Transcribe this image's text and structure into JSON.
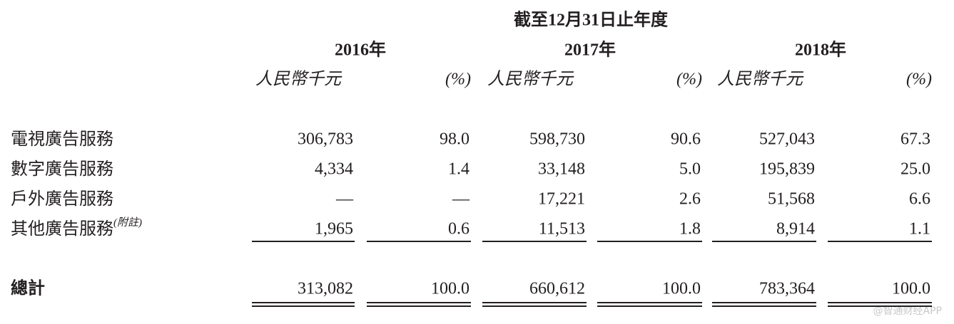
{
  "header": {
    "title": "截至12月31日止年度",
    "years": [
      "2016年",
      "2017年",
      "2018年"
    ],
    "units": [
      "人民幣千元",
      "(%)",
      "人民幣千元",
      "(%)",
      "人民幣千元",
      "(%)"
    ]
  },
  "table": {
    "rows": [
      {
        "label": "電視廣告服務",
        "cells": [
          "306,783",
          "98.0",
          "598,730",
          "90.6",
          "527,043",
          "67.3"
        ]
      },
      {
        "label": "數字廣告服務",
        "cells": [
          "4,334",
          "1.4",
          "33,148",
          "5.0",
          "195,839",
          "25.0"
        ]
      },
      {
        "label": "戶外廣告服務",
        "cells": [
          "—",
          "—",
          "17,221",
          "2.6",
          "51,568",
          "6.6"
        ]
      },
      {
        "label": "其他廣告服務",
        "note": "(附註)",
        "cells": [
          "1,965",
          "0.6",
          "11,513",
          "1.8",
          "8,914",
          "1.1"
        ]
      }
    ],
    "total": {
      "label": "總計",
      "cells": [
        "313,082",
        "100.0",
        "660,612",
        "100.0",
        "783,364",
        "100.0"
      ]
    }
  },
  "watermark": "@智通财经APP"
}
